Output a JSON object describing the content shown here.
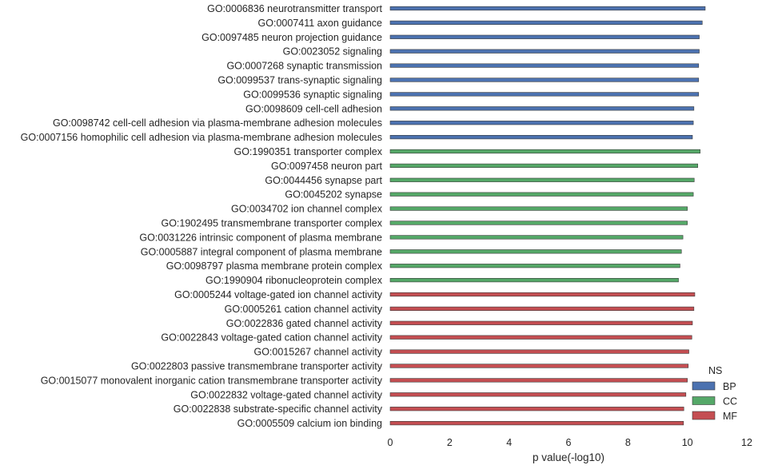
{
  "chart_data": {
    "type": "bar",
    "orientation": "horizontal",
    "title": "",
    "xlabel": "p value(-log10)",
    "ylabel": "",
    "xlim": [
      0,
      12
    ],
    "xticks": [
      0,
      2,
      4,
      6,
      8,
      10,
      12
    ],
    "grid": false,
    "legend": {
      "title": "NS",
      "placement": "bottom-right",
      "entries": [
        {
          "name": "BP",
          "color": "#4c72b0"
        },
        {
          "name": "CC",
          "color": "#55a868"
        },
        {
          "name": "MF",
          "color": "#c44e52"
        }
      ]
    },
    "bars": [
      {
        "label": "GO:0006836 neurotransmitter transport",
        "value": 10.6,
        "group": "BP"
      },
      {
        "label": "GO:0007411 axon guidance",
        "value": 10.5,
        "group": "BP"
      },
      {
        "label": "GO:0097485 neuron projection guidance",
        "value": 10.4,
        "group": "BP"
      },
      {
        "label": "GO:0023052 signaling",
        "value": 10.4,
        "group": "BP"
      },
      {
        "label": "GO:0007268 synaptic transmission",
        "value": 10.38,
        "group": "BP"
      },
      {
        "label": "GO:0099537 trans-synaptic signaling",
        "value": 10.38,
        "group": "BP"
      },
      {
        "label": "GO:0099536 synaptic signaling",
        "value": 10.38,
        "group": "BP"
      },
      {
        "label": "GO:0098609 cell-cell adhesion",
        "value": 10.22,
        "group": "BP"
      },
      {
        "label": "GO:0098742 cell-cell adhesion via plasma-membrane adhesion molecules",
        "value": 10.2,
        "group": "BP"
      },
      {
        "label": "GO:0007156 homophilic cell adhesion via plasma-membrane adhesion molecules",
        "value": 10.17,
        "group": "BP"
      },
      {
        "label": "GO:1990351 transporter complex",
        "value": 10.43,
        "group": "CC"
      },
      {
        "label": "GO:0097458 neuron part",
        "value": 10.35,
        "group": "CC"
      },
      {
        "label": "GO:0044456 synapse part",
        "value": 10.23,
        "group": "CC"
      },
      {
        "label": "GO:0045202 synapse",
        "value": 10.2,
        "group": "CC"
      },
      {
        "label": "GO:0034702 ion channel complex",
        "value": 10.0,
        "group": "CC"
      },
      {
        "label": "GO:1902495 transmembrane transporter complex",
        "value": 10.0,
        "group": "CC"
      },
      {
        "label": "GO:0031226 intrinsic component of plasma membrane",
        "value": 9.85,
        "group": "CC"
      },
      {
        "label": "GO:0005887 integral component of plasma membrane",
        "value": 9.8,
        "group": "CC"
      },
      {
        "label": "GO:0098797 plasma membrane protein complex",
        "value": 9.75,
        "group": "CC"
      },
      {
        "label": "GO:1990904 ribonucleoprotein complex",
        "value": 9.7,
        "group": "CC"
      },
      {
        "label": "GO:0005244 voltage-gated ion channel activity",
        "value": 10.25,
        "group": "MF"
      },
      {
        "label": "GO:0005261 cation channel activity",
        "value": 10.22,
        "group": "MF"
      },
      {
        "label": "GO:0022836 gated channel activity",
        "value": 10.17,
        "group": "MF"
      },
      {
        "label": "GO:0022843 voltage-gated cation channel activity",
        "value": 10.15,
        "group": "MF"
      },
      {
        "label": "GO:0015267 channel activity",
        "value": 10.05,
        "group": "MF"
      },
      {
        "label": "GO:0022803 passive transmembrane transporter activity",
        "value": 10.03,
        "group": "MF"
      },
      {
        "label": "GO:0015077 monovalent inorganic cation transmembrane transporter activity",
        "value": 10.0,
        "group": "MF"
      },
      {
        "label": "GO:0022832 voltage-gated channel activity",
        "value": 9.95,
        "group": "MF"
      },
      {
        "label": "GO:0022838 substrate-specific channel activity",
        "value": 9.88,
        "group": "MF"
      },
      {
        "label": "GO:0005509 calcium ion binding",
        "value": 9.87,
        "group": "MF"
      }
    ]
  }
}
